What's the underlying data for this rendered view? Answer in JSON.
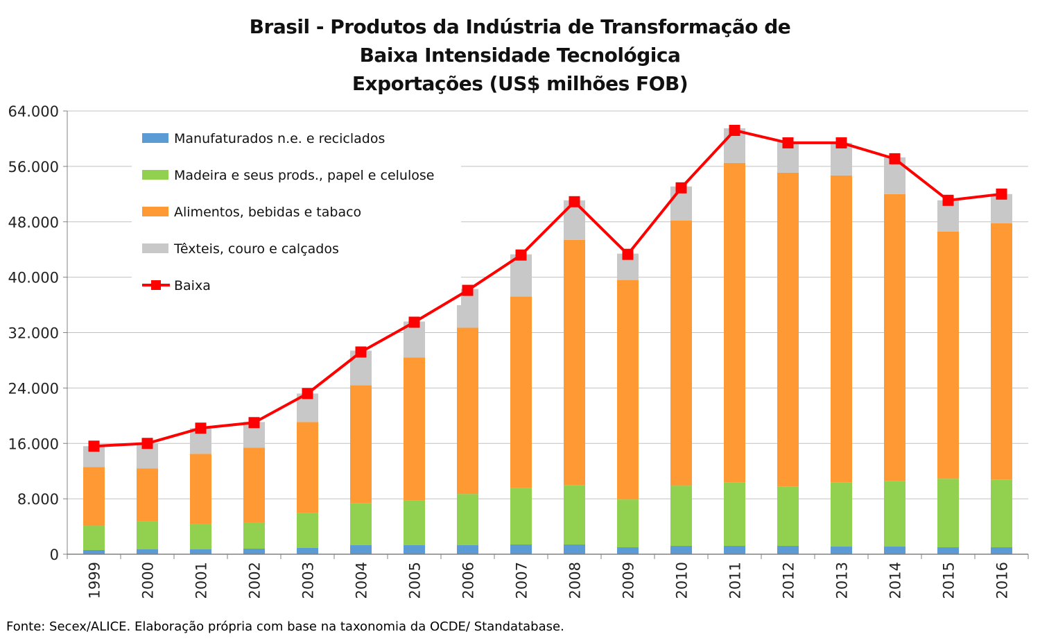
{
  "title_lines": [
    "Brasil - Produtos da Indústria de Transformação de",
    "Baixa Intensidade Tecnológica",
    "Exportações (US$ milhões FOB)"
  ],
  "source": "Fonte: Secex/ALICE. Elaboração própria com base na taxonomia da OCDE/ Standatabase.",
  "colors": {
    "manufaturados": "#5B9BD5",
    "madeira": "#92D050",
    "alimentos": "#FF9933",
    "texteis": "#C8C8C8",
    "baixa": "#FF0000",
    "grid": "#C0C0C0",
    "axis": "#808080"
  },
  "chart_data": {
    "type": "bar",
    "stacked": true,
    "title": "Brasil - Produtos da Indústria de Transformação de Baixa Intensidade Tecnológica Exportações (US$ milhões FOB)",
    "categories": [
      "1999",
      "2000",
      "2001",
      "2002",
      "2003",
      "2004",
      "2005",
      "2006",
      "2007",
      "2008",
      "2009",
      "2010",
      "2011",
      "2012",
      "2013",
      "2014",
      "2015",
      "2016"
    ],
    "series": [
      {
        "name": "Manufaturados n.e. e reciclados",
        "color_key": "manufaturados",
        "values": [
          600,
          700,
          700,
          800,
          900,
          1300,
          1300,
          1300,
          1400,
          1400,
          1000,
          1200,
          1200,
          1200,
          1100,
          1100,
          1000,
          1000
        ]
      },
      {
        "name": "Madeira e seus prods., papel e celulose",
        "color_key": "madeira",
        "values": [
          3500,
          4100,
          3700,
          3800,
          5100,
          6100,
          6500,
          7400,
          8200,
          8600,
          6900,
          8700,
          9200,
          8600,
          9300,
          9500,
          9900,
          9800
        ]
      },
      {
        "name": "Alimentos, bebidas e tabaco",
        "color_key": "alimentos",
        "values": [
          8500,
          7600,
          10100,
          10800,
          13100,
          17000,
          20600,
          24000,
          27600,
          35400,
          31700,
          38300,
          46100,
          45300,
          44300,
          41400,
          35700,
          37000
        ]
      },
      {
        "name": "Têxteis, couro e calçados",
        "color_key": "texteis",
        "values": [
          3000,
          3600,
          3700,
          3700,
          4100,
          5000,
          5200,
          5600,
          6100,
          5700,
          3800,
          4900,
          5000,
          4500,
          4700,
          5300,
          4500,
          4200
        ]
      }
    ],
    "line": {
      "name": "Baixa",
      "color_key": "baixa",
      "values": [
        15600,
        16000,
        18200,
        19000,
        23200,
        29200,
        33500,
        38100,
        43200,
        50900,
        43300,
        52900,
        61200,
        59400,
        59400,
        57100,
        51100,
        52000
      ]
    },
    "ylim": [
      0,
      64000
    ],
    "yticks": [
      0,
      8000,
      16000,
      24000,
      32000,
      40000,
      48000,
      56000,
      64000
    ],
    "ytick_labels": [
      "0",
      "8.000",
      "16.000",
      "24.000",
      "32.000",
      "40.000",
      "48.000",
      "56.000",
      "64.000"
    ],
    "legend_entries": [
      "Manufaturados n.e. e reciclados",
      "Madeira e seus prods., papel e celulose",
      "Alimentos, bebidas e tabaco",
      "Têxteis, couro e calçados",
      "Baixa"
    ],
    "legend_position": "top-left",
    "grid": true,
    "xlabel": "",
    "ylabel": ""
  }
}
